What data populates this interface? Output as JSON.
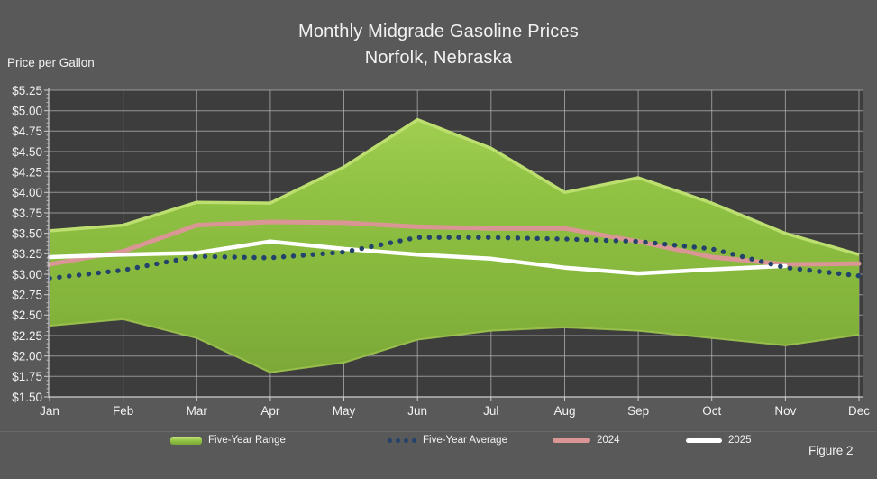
{
  "background": "#595959",
  "chart_data": {
    "type": "area+line",
    "title": "Monthly Midgrade Gasoline Prices",
    "subtitle": "Norfolk, Nebraska",
    "ylabel": "Price per Gallon",
    "figure_label": "Figure 2",
    "ylim": [
      1.5,
      5.25
    ],
    "ytick_step": 0.25,
    "ytick_labels": [
      "$5.25",
      "$5.00",
      "$4.75",
      "$4.50",
      "$4.25",
      "$4.00",
      "$3.75",
      "$3.50",
      "$3.25",
      "$3.00",
      "$2.75",
      "$2.50",
      "$2.25",
      "$2.00",
      "$1.75",
      "$1.50"
    ],
    "categories": [
      "Jan",
      "Feb",
      "Mar",
      "Apr",
      "May",
      "Jun",
      "Jul",
      "Aug",
      "Sep",
      "Oct",
      "Nov",
      "Dec"
    ],
    "grid": true,
    "legend_position": "bottom",
    "colors": {
      "plot_background": "#3D3D3D",
      "outer_background": "#595959",
      "gridline": "#B3B3B3",
      "axis": "#CFCFCF",
      "text": "#F2F2F2",
      "range_fill": "#8CBE3F",
      "range_highlight": "#BCDF70",
      "average_dots": "#23436A",
      "line_2024": "#D99694",
      "line_2025": "#FFFFFF"
    },
    "series": [
      {
        "name": "Five-Year Range",
        "type": "range",
        "color": "#8CBE3F",
        "high": [
          3.53,
          3.6,
          3.88,
          3.87,
          4.31,
          4.89,
          4.54,
          4.0,
          4.18,
          3.87,
          3.5,
          3.24
        ],
        "low": [
          2.37,
          2.45,
          2.22,
          1.8,
          1.92,
          2.2,
          2.31,
          2.35,
          2.31,
          2.22,
          2.13,
          2.26
        ]
      },
      {
        "name": "Five-Year Average",
        "type": "dotted-line",
        "color": "#23436A",
        "values": [
          2.95,
          3.05,
          3.22,
          3.2,
          3.27,
          3.45,
          3.45,
          3.43,
          3.4,
          3.31,
          3.08,
          2.98
        ]
      },
      {
        "name": "2024",
        "type": "line",
        "color": "#D99694",
        "values": [
          3.12,
          3.28,
          3.6,
          3.64,
          3.63,
          3.58,
          3.56,
          3.56,
          3.4,
          3.21,
          3.12,
          3.13
        ]
      },
      {
        "name": "2025",
        "type": "line",
        "color": "#FFFFFF",
        "values": [
          3.21,
          3.24,
          3.26,
          3.4,
          3.31,
          3.24,
          3.19,
          3.08,
          3.01,
          3.06,
          3.1,
          null
        ]
      }
    ]
  }
}
